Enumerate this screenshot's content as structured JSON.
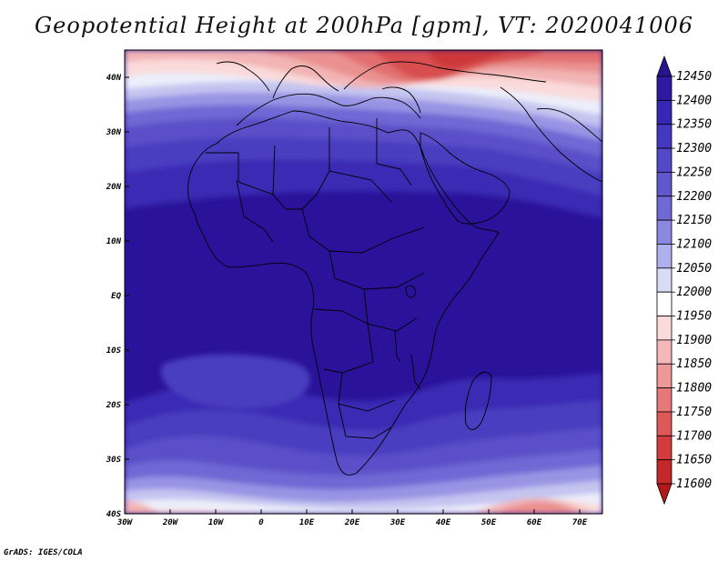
{
  "title": "Geopotential Height at 200hPa [gpm], VT: 2020041006",
  "footer": "GrADS: IGES/COLA",
  "map": {
    "region": "Africa",
    "lon_range": [
      -30,
      75
    ],
    "lat_range": [
      -40,
      45
    ],
    "lat_labels": [
      "40N",
      "30N",
      "20N",
      "10N",
      "EQ",
      "10S",
      "20S",
      "30S",
      "40S"
    ],
    "lat_values": [
      40,
      30,
      20,
      10,
      0,
      -10,
      -20,
      -30,
      -40
    ],
    "lon_labels": [
      "30W",
      "20W",
      "10W",
      "0",
      "10E",
      "20E",
      "30E",
      "40E",
      "50E",
      "60E",
      "70E"
    ],
    "lon_values": [
      -30,
      -20,
      -10,
      0,
      10,
      20,
      30,
      40,
      50,
      60,
      70
    ]
  },
  "colorbar": {
    "labels": [
      "12450",
      "12400",
      "12350",
      "12300",
      "12250",
      "12200",
      "12150",
      "12100",
      "12050",
      "12000",
      "11950",
      "11900",
      "11850",
      "11800",
      "11750",
      "11700",
      "11650",
      "11600"
    ],
    "colors": [
      "#2a1390",
      "#2e1aa0",
      "#3628b4",
      "#4438c0",
      "#5248c8",
      "#6058cc",
      "#7068d4",
      "#8a88e0",
      "#b0b0ec",
      "#d8dcf6",
      "#ffffff",
      "#fadada",
      "#f4b8b8",
      "#ee9898",
      "#e67878",
      "#de5858",
      "#d23c3c",
      "#c42828",
      "#b41818"
    ]
  }
}
